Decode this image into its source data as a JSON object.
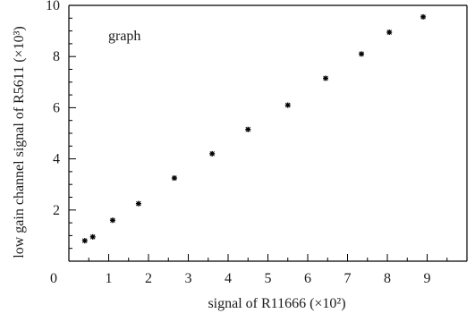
{
  "chart_data": {
    "type": "scatter",
    "annotation": "graph",
    "xlabel": "signal of R11666  (×10²)",
    "ylabel": "low gain channel signal of R5611 (×10³)",
    "xlim": [
      0,
      10
    ],
    "ylim": [
      0,
      10
    ],
    "x_ticks": [
      0,
      1,
      2,
      3,
      4,
      5,
      6,
      7,
      8,
      9
    ],
    "y_ticks": [
      2,
      4,
      6,
      8,
      10
    ],
    "marker": "star",
    "grid": false,
    "series": [
      {
        "x": [
          0.4,
          0.6,
          1.1,
          1.75,
          2.65,
          3.6,
          4.5,
          5.5,
          6.45,
          7.35,
          8.05,
          8.9
        ],
        "y": [
          0.8,
          0.95,
          1.6,
          2.25,
          3.25,
          4.2,
          5.15,
          6.1,
          7.15,
          8.1,
          8.95,
          9.55
        ]
      }
    ]
  }
}
